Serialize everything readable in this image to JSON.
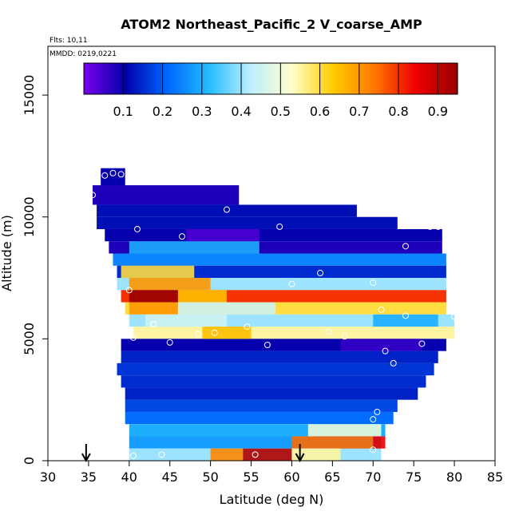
{
  "chart_data": {
    "type": "heatmap",
    "title": "ATOM2 Northeast_Pacific_2 V_coarse_AMP",
    "annotations": {
      "flights": "Flts: 10,11",
      "dates": "MMDD: 0219,0221"
    },
    "xlabel": "Latitude (deg N)",
    "ylabel": "Altitude (m)",
    "xlim": [
      30,
      85
    ],
    "ylim": [
      0,
      17000
    ],
    "x_ticks": [
      "30",
      "35",
      "40",
      "45",
      "50",
      "55",
      "60",
      "65",
      "70",
      "75",
      "80",
      "85"
    ],
    "x_tick_values": [
      30,
      35,
      40,
      45,
      50,
      55,
      60,
      65,
      70,
      75,
      80,
      85
    ],
    "y_ticks": [
      "0",
      "5000",
      "10000",
      "15000"
    ],
    "y_tick_values": [
      0,
      5000,
      10000,
      15000
    ],
    "colorbar": {
      "range": [
        0,
        0.95
      ],
      "tick_labels": [
        "0.1",
        "0.2",
        "0.3",
        "0.4",
        "0.5",
        "0.6",
        "0.7",
        "0.8",
        "0.9"
      ],
      "tick_values": [
        0.1,
        0.2,
        0.3,
        0.4,
        0.5,
        0.6,
        0.7,
        0.8,
        0.9
      ],
      "colors": [
        "#7a00ee",
        "#0000aa",
        "#0066ff",
        "#22bbff",
        "#bbeeff",
        "#ffffcc",
        "#ffcc00",
        "#ff7700",
        "#ee0000",
        "#990000"
      ]
    },
    "field_bands": [
      {
        "alt": [
          11300,
          12000
        ],
        "lat": [
          36.5,
          39.5
        ],
        "value": 0.1
      },
      {
        "alt": [
          10500,
          11300
        ],
        "lat": [
          35.5,
          53.5
        ],
        "value": 0.08
      },
      {
        "alt": [
          10000,
          10500
        ],
        "lat": [
          36.0,
          68.0
        ],
        "value": 0.12
      },
      {
        "alt": [
          9500,
          10000
        ],
        "lat": [
          36.0,
          73.0
        ],
        "value": 0.12
      },
      {
        "alt": [
          9000,
          9500
        ],
        "lat": [
          37.0,
          78.5
        ],
        "value": 0.1
      },
      {
        "alt": [
          8500,
          9000
        ],
        "lat": [
          37.5,
          78.5
        ],
        "value": 0.08
      },
      {
        "alt": [
          8000,
          8500
        ],
        "lat": [
          38.0,
          79.0
        ],
        "value": 0.25
      },
      {
        "alt": [
          7500,
          8000
        ],
        "lat": [
          38.5,
          79.0
        ],
        "value": 0.15
      },
      {
        "alt": [
          7000,
          7500
        ],
        "lat": [
          38.5,
          79.0
        ],
        "value": 0.4
      },
      {
        "alt": [
          6500,
          7000
        ],
        "lat": [
          39.0,
          79.0
        ],
        "value": 0.8
      },
      {
        "alt": [
          6000,
          6500
        ],
        "lat": [
          39.5,
          79.0
        ],
        "value": 0.6
      },
      {
        "alt": [
          5500,
          6000
        ],
        "lat": [
          40.0,
          80.0
        ],
        "value": 0.4
      },
      {
        "alt": [
          5000,
          5500
        ],
        "lat": [
          40.5,
          80.0
        ],
        "value": 0.55
      },
      {
        "alt": [
          4500,
          5000
        ],
        "lat": [
          39.0,
          79.0
        ],
        "value": 0.1
      },
      {
        "alt": [
          4000,
          4500
        ],
        "lat": [
          39.0,
          78.0
        ],
        "value": 0.14
      },
      {
        "alt": [
          3500,
          4000
        ],
        "lat": [
          38.5,
          77.5
        ],
        "value": 0.16
      },
      {
        "alt": [
          3000,
          3500
        ],
        "lat": [
          39.0,
          76.5
        ],
        "value": 0.15
      },
      {
        "alt": [
          2500,
          3000
        ],
        "lat": [
          39.5,
          75.5
        ],
        "value": 0.14
      },
      {
        "alt": [
          2000,
          2500
        ],
        "lat": [
          39.5,
          73.0
        ],
        "value": 0.18
      },
      {
        "alt": [
          1500,
          2000
        ],
        "lat": [
          39.5,
          72.5
        ],
        "value": 0.22
      },
      {
        "alt": [
          1000,
          1500
        ],
        "lat": [
          40.0,
          71.5
        ],
        "value": 0.3
      },
      {
        "alt": [
          500,
          1000
        ],
        "lat": [
          40.0,
          71.0
        ],
        "value": 0.28
      },
      {
        "alt": [
          0,
          500
        ],
        "lat": [
          40.0,
          71.0
        ],
        "value": 0.4
      }
    ],
    "field_patches": [
      {
        "alt": [
          7500,
          8000
        ],
        "lat": [
          39.0,
          48.0
        ],
        "value": 0.6
      },
      {
        "alt": [
          7000,
          7500
        ],
        "lat": [
          40.0,
          50.0
        ],
        "value": 0.7
      },
      {
        "alt": [
          6500,
          7000
        ],
        "lat": [
          40.0,
          46.0
        ],
        "value": 0.95
      },
      {
        "alt": [
          6500,
          7000
        ],
        "lat": [
          46.0,
          52.0
        ],
        "value": 0.65
      },
      {
        "alt": [
          6000,
          6500
        ],
        "lat": [
          40.0,
          46.0
        ],
        "value": 0.7
      },
      {
        "alt": [
          6000,
          6500
        ],
        "lat": [
          46.0,
          58.0
        ],
        "value": 0.45
      },
      {
        "alt": [
          5500,
          6000
        ],
        "lat": [
          42.0,
          52.0
        ],
        "value": 0.45
      },
      {
        "alt": [
          5000,
          5500
        ],
        "lat": [
          49.0,
          55.0
        ],
        "value": 0.65
      },
      {
        "alt": [
          5500,
          6000
        ],
        "lat": [
          70.0,
          78.0
        ],
        "value": 0.3
      },
      {
        "alt": [
          4500,
          5000
        ],
        "lat": [
          66.0,
          76.0
        ],
        "value": 0.06
      },
      {
        "alt": [
          1000,
          1500
        ],
        "lat": [
          62.0,
          71.0
        ],
        "value": 0.5
      },
      {
        "alt": [
          500,
          1000
        ],
        "lat": [
          60.0,
          70.0
        ],
        "value": 0.75
      },
      {
        "alt": [
          500,
          1000
        ],
        "lat": [
          70.0,
          71.5
        ],
        "value": 0.85
      },
      {
        "alt": [
          0,
          500
        ],
        "lat": [
          50.0,
          54.0
        ],
        "value": 0.72
      },
      {
        "alt": [
          0,
          500
        ],
        "lat": [
          54.0,
          60.0
        ],
        "value": 0.92
      },
      {
        "alt": [
          0,
          500
        ],
        "lat": [
          60.0,
          66.0
        ],
        "value": 0.55
      },
      {
        "alt": [
          9000,
          9500
        ],
        "lat": [
          47.0,
          56.0
        ],
        "value": 0.04
      },
      {
        "alt": [
          8500,
          9000
        ],
        "lat": [
          40.0,
          56.0
        ],
        "value": 0.3
      }
    ],
    "sample_points": [
      {
        "lat": 35.5,
        "alt": 10900
      },
      {
        "lat": 37.0,
        "alt": 11700
      },
      {
        "lat": 38.0,
        "alt": 11800
      },
      {
        "lat": 39.0,
        "alt": 11750
      },
      {
        "lat": 52.0,
        "alt": 10300
      },
      {
        "lat": 67.5,
        "alt": 10650
      },
      {
        "lat": 73.5,
        "alt": 10000
      },
      {
        "lat": 77.0,
        "alt": 9600
      },
      {
        "lat": 78.0,
        "alt": 9600
      },
      {
        "lat": 58.5,
        "alt": 9600
      },
      {
        "lat": 41.0,
        "alt": 9500
      },
      {
        "lat": 46.5,
        "alt": 9200
      },
      {
        "lat": 74.0,
        "alt": 8800
      },
      {
        "lat": 63.5,
        "alt": 7700
      },
      {
        "lat": 60.0,
        "alt": 7250
      },
      {
        "lat": 70.0,
        "alt": 7300
      },
      {
        "lat": 40.0,
        "alt": 7000
      },
      {
        "lat": 71.0,
        "alt": 6200
      },
      {
        "lat": 74.0,
        "alt": 5950
      },
      {
        "lat": 80.0,
        "alt": 5900
      },
      {
        "lat": 43.0,
        "alt": 5600
      },
      {
        "lat": 54.5,
        "alt": 5500
      },
      {
        "lat": 48.5,
        "alt": 5200
      },
      {
        "lat": 50.5,
        "alt": 5250
      },
      {
        "lat": 64.5,
        "alt": 5300
      },
      {
        "lat": 66.5,
        "alt": 5100
      },
      {
        "lat": 40.5,
        "alt": 5050
      },
      {
        "lat": 45.0,
        "alt": 4850
      },
      {
        "lat": 57.0,
        "alt": 4750
      },
      {
        "lat": 76.0,
        "alt": 4800
      },
      {
        "lat": 71.5,
        "alt": 4500
      },
      {
        "lat": 72.5,
        "alt": 4000
      },
      {
        "lat": 70.5,
        "alt": 2000
      },
      {
        "lat": 70.0,
        "alt": 1700
      },
      {
        "lat": 70.0,
        "alt": 450
      },
      {
        "lat": 44.0,
        "alt": 250
      },
      {
        "lat": 40.5,
        "alt": 200
      },
      {
        "lat": 55.5,
        "alt": 250
      }
    ],
    "arrows": [
      {
        "lat": 34.7
      },
      {
        "lat": 61.0
      }
    ]
  }
}
